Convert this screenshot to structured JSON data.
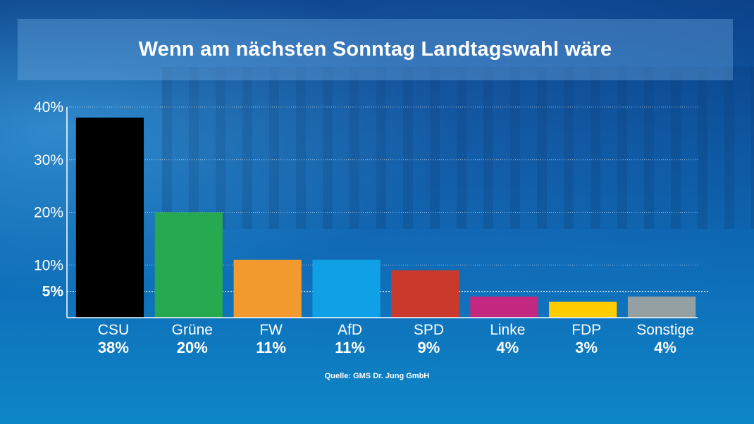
{
  "chart_data": {
    "type": "bar",
    "title": "Wenn am nächsten Sonntag Landtagswahl wäre",
    "categories": [
      "CSU",
      "Grüne",
      "FW",
      "AfD",
      "SPD",
      "Linke",
      "FDP",
      "Sonstige"
    ],
    "values": [
      38,
      20,
      11,
      11,
      9,
      4,
      3,
      4
    ],
    "value_labels": [
      "38%",
      "20%",
      "11%",
      "11%",
      "9%",
      "4%",
      "3%",
      "4%"
    ],
    "colors": [
      "#000000",
      "#27a94f",
      "#f29a2e",
      "#0fa0e6",
      "#c93a2c",
      "#c2287f",
      "#ffcc00",
      "#95a0a3"
    ],
    "ylim": [
      0,
      40
    ],
    "yticks": [
      {
        "value": 10,
        "label": "10%"
      },
      {
        "value": 20,
        "label": "20%"
      },
      {
        "value": 30,
        "label": "30%"
      },
      {
        "value": 40,
        "label": "40%"
      }
    ],
    "threshold": {
      "value": 5,
      "label": "5%"
    },
    "xlabel": "",
    "ylabel": "",
    "grid": true
  },
  "source": "Quelle: GMS Dr. Jung GmbH"
}
